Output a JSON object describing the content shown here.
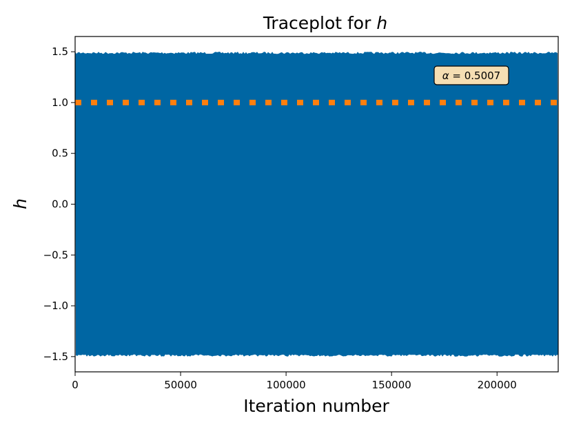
{
  "chart_data": {
    "type": "line",
    "title": "Traceplot for ",
    "title_variable": "h",
    "xlabel": "Iteration number",
    "ylabel": "h",
    "xlim": [
      0,
      229000
    ],
    "ylim": [
      -1.65,
      1.65
    ],
    "xticks": [
      0,
      50000,
      100000,
      150000,
      200000
    ],
    "xtick_labels": [
      "0",
      "50000",
      "100000",
      "150000",
      "200000"
    ],
    "yticks": [
      1.5,
      1.0,
      0.5,
      0.0,
      -0.5,
      -1.0,
      -1.5
    ],
    "ytick_labels": [
      "1.5",
      "1.0",
      "0.5",
      "0.0",
      "−0.5",
      "−1.0",
      "−1.5"
    ],
    "grid": false,
    "series": [
      {
        "color": "#0066a3",
        "trace_range": [
          -1.5,
          1.5
        ],
        "x_range": [
          0,
          229000
        ]
      },
      {
        "style": "dotted",
        "color": "#ff7f0e",
        "y": 1.0
      }
    ],
    "annotation": {
      "symbol": "α",
      "text": " = 0.5007",
      "position": "top-right",
      "box_color": "#f5deb3"
    }
  }
}
